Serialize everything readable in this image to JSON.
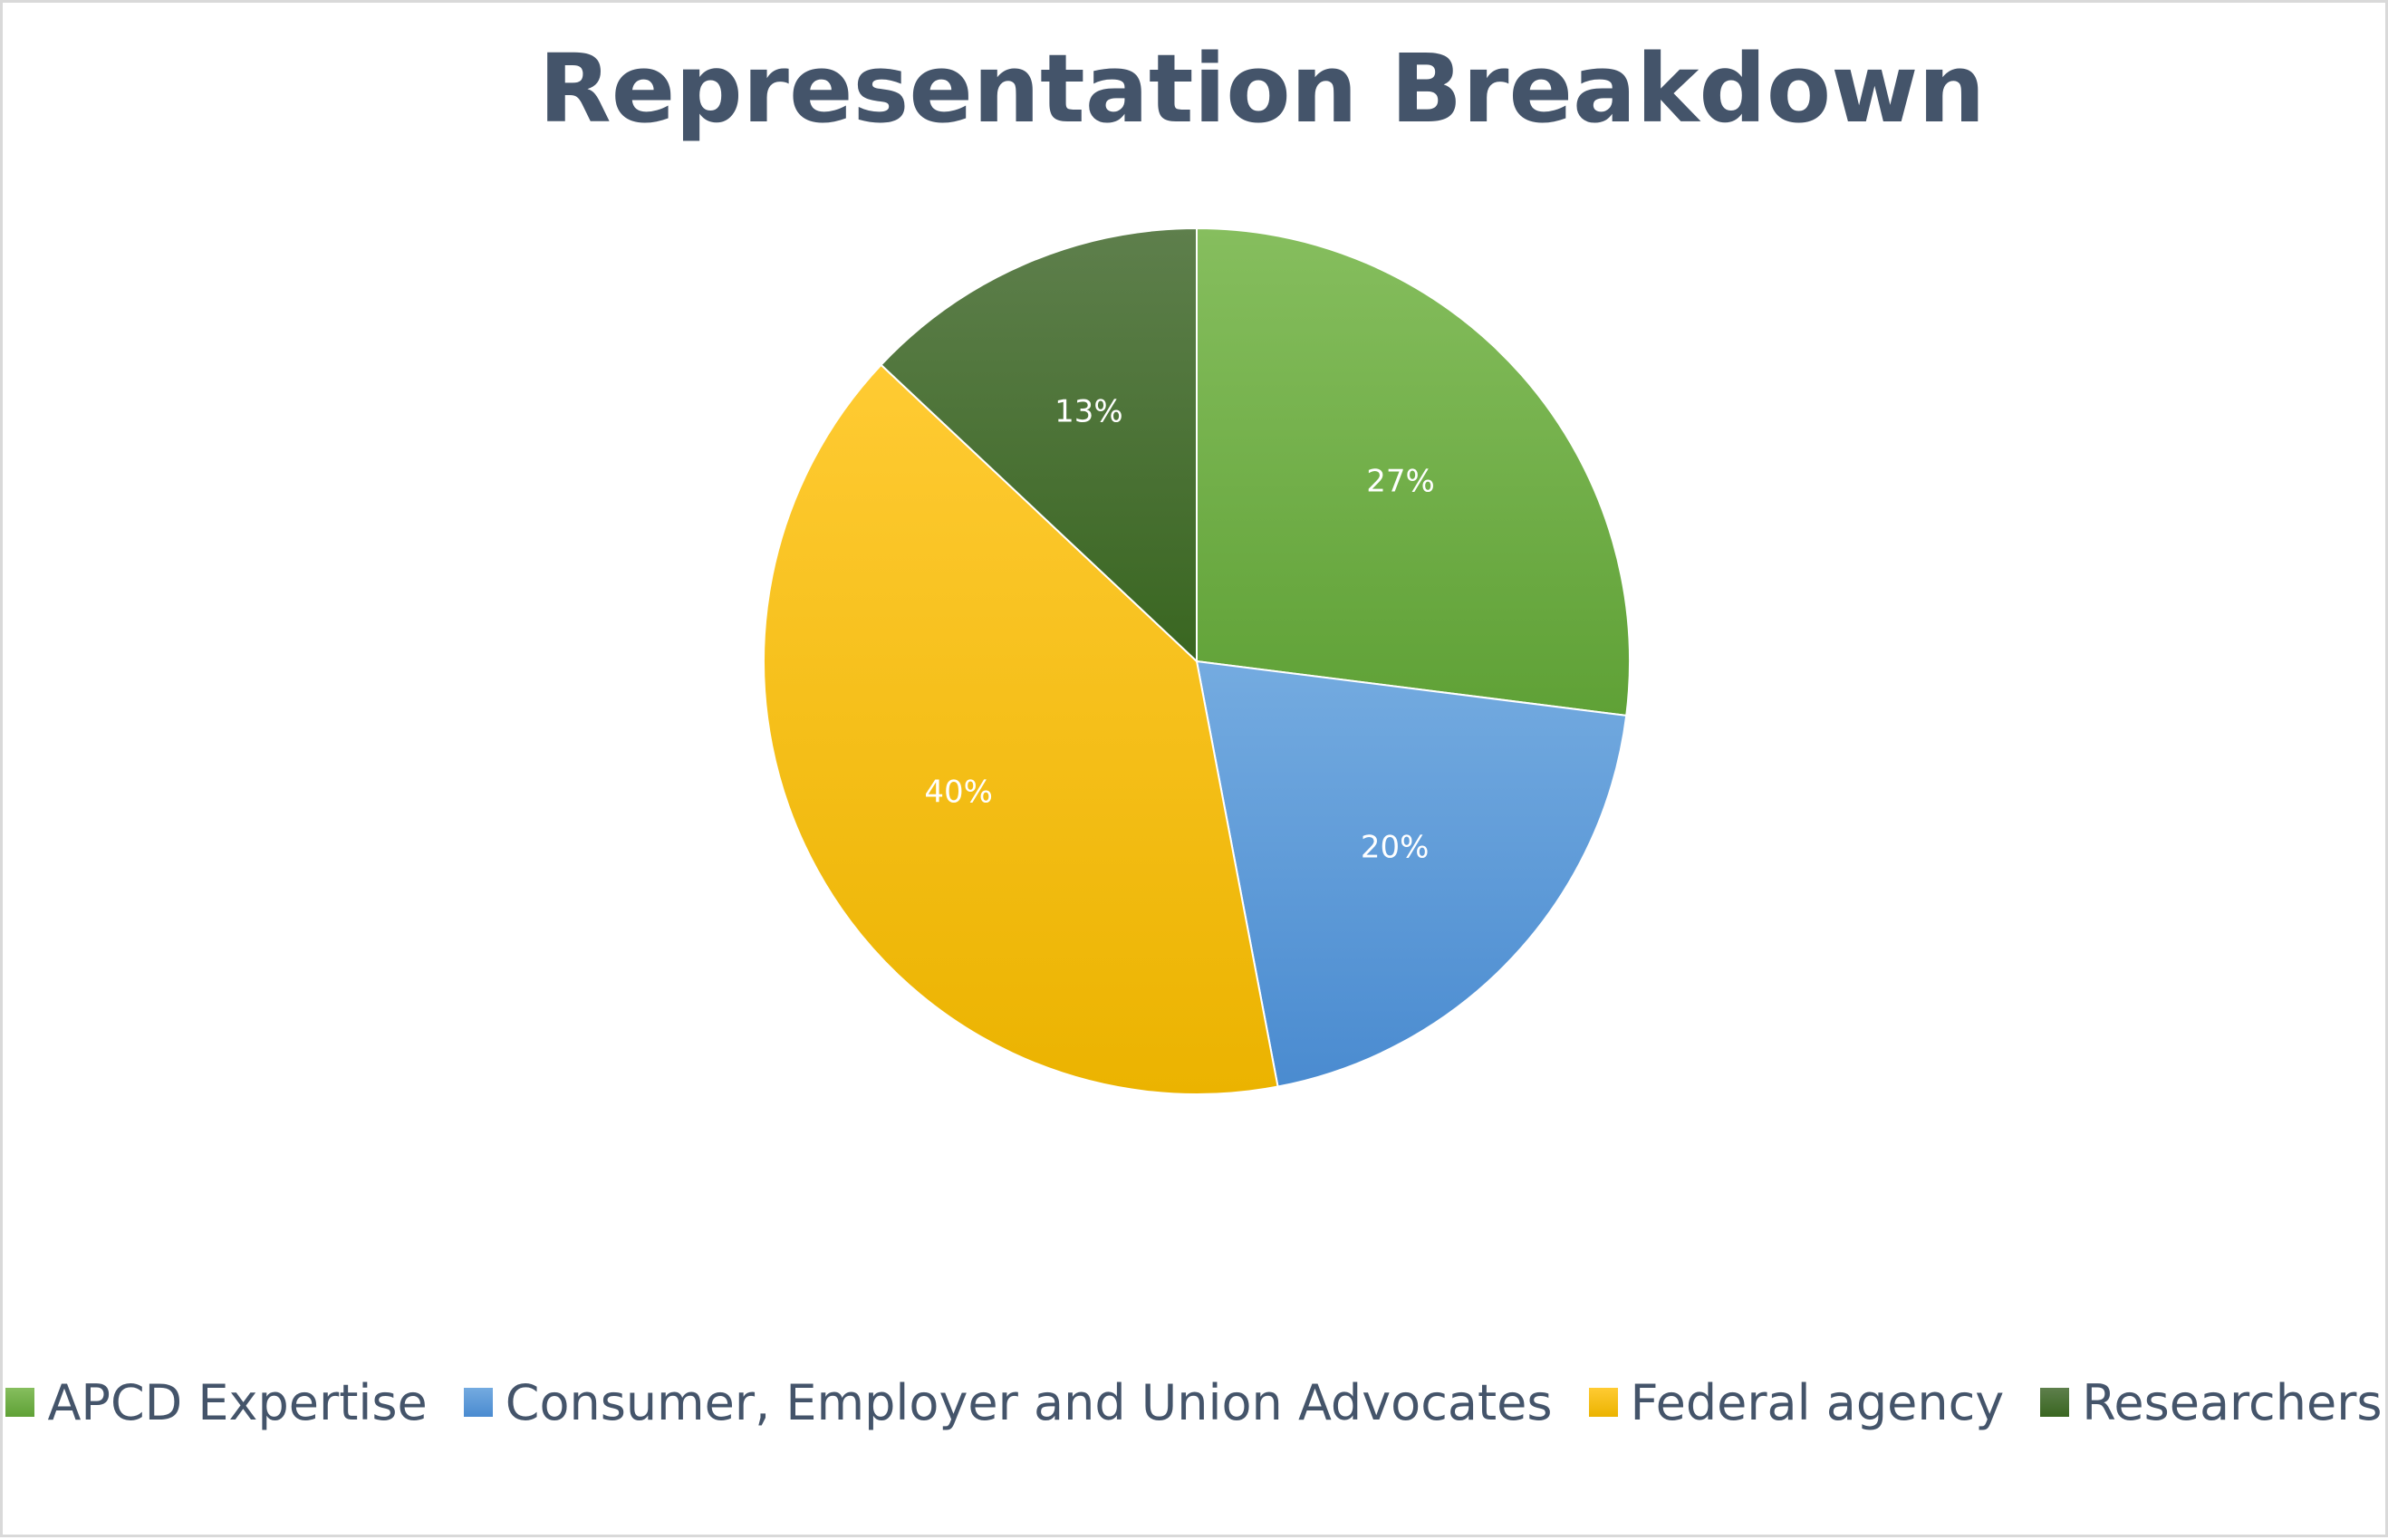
{
  "chart_data": {
    "type": "pie",
    "title": "Representation Breakdown",
    "categories": [
      "APCD Expertise",
      "Consumer, Employer and Union Advocates",
      "Federal agency",
      "Researchers"
    ],
    "values": [
      27,
      20,
      40,
      13
    ],
    "data_labels": [
      "27%",
      "20%",
      "40%",
      "13%"
    ],
    "colors": [
      "#70ad47",
      "#5b9bd5",
      "#ffc000",
      "#4a7a34"
    ],
    "gradient_top_colors": [
      "#86be5e",
      "#74abe0",
      "#ffcb33",
      "#5e7f4c"
    ],
    "gradient_bottom_colors": [
      "#5fa136",
      "#4a8bd0",
      "#ebb300",
      "#396620"
    ],
    "legend_position": "bottom",
    "start_angle": "12 o'clock",
    "direction": "clockwise"
  }
}
